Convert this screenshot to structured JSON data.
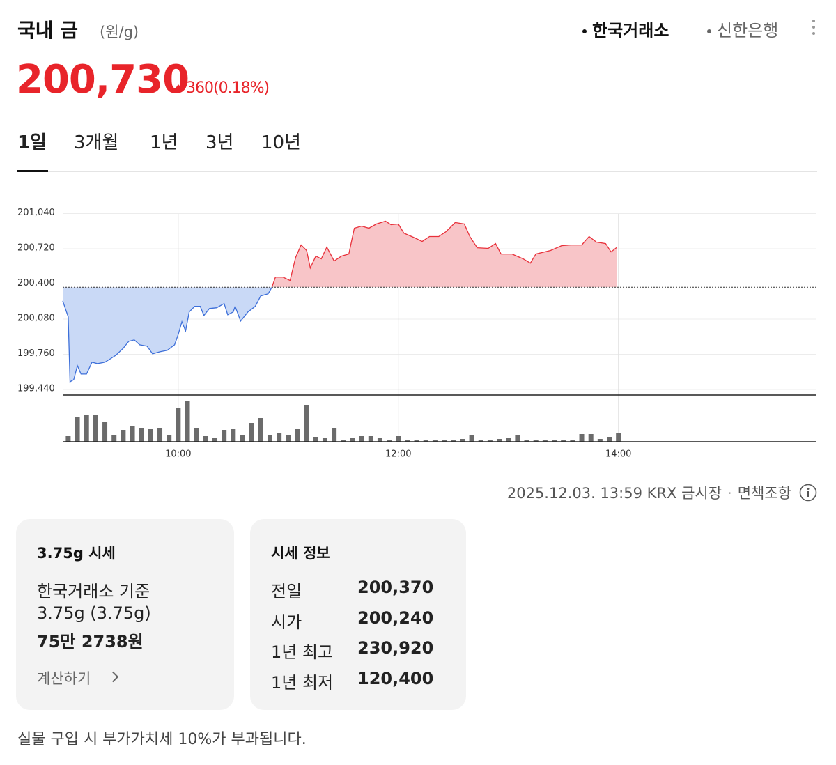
{
  "header": {
    "title": "국내 금",
    "unit": "(원/g)",
    "sources": [
      "한국거래소",
      "신한은행"
    ],
    "active_source": 0
  },
  "price": {
    "value": "200,730",
    "change": "360",
    "change_rate": "(0.18%)"
  },
  "tabs": {
    "items": [
      "1일",
      "3개월",
      "1년",
      "3년",
      "10년"
    ],
    "active": 0
  },
  "chart_data": {
    "type": "line",
    "x": [
      "08:57",
      "09:00",
      "09:01",
      "09:03",
      "09:05",
      "09:07",
      "09:10",
      "09:13",
      "09:16",
      "09:20",
      "09:23",
      "09:26",
      "09:30",
      "09:33",
      "09:36",
      "09:39",
      "09:43",
      "09:46",
      "09:50",
      "09:54",
      "09:58",
      "10:00",
      "10:02",
      "10:04",
      "10:06",
      "10:09",
      "10:12",
      "10:14",
      "10:17",
      "10:21",
      "10:25",
      "10:27",
      "10:30",
      "10:31",
      "10:34",
      "10:38",
      "10:42",
      "10:45",
      "10:49",
      "10:51",
      "10:53",
      "10:57",
      "11:01",
      "11:04",
      "11:07",
      "11:10",
      "11:12",
      "11:15",
      "11:18",
      "11:21",
      "11:25",
      "11:29",
      "11:33",
      "11:36",
      "11:40",
      "11:44",
      "11:48",
      "11:53",
      "11:56",
      "12:00",
      "12:03",
      "12:09",
      "12:13",
      "12:17",
      "12:22",
      "12:26",
      "12:31",
      "12:36",
      "12:39",
      "12:43",
      "12:49",
      "12:53",
      "12:56",
      "13:02",
      "13:08",
      "13:12",
      "13:15",
      "13:23",
      "13:29",
      "13:34",
      "13:40",
      "13:44",
      "13:48",
      "13:53",
      "13:56",
      "13:59"
    ],
    "series": [
      {
        "values": [
          200246,
          200100,
          199510,
          199529,
          199656,
          199580,
          199580,
          199688,
          199675,
          199688,
          199719,
          199751,
          199815,
          199878,
          199891,
          199846,
          199834,
          199764,
          199783,
          199796,
          199846,
          199942,
          200056,
          199973,
          200145,
          200196,
          200196,
          200113,
          200176,
          200183,
          200221,
          200119,
          200145,
          200196,
          200062,
          200145,
          200196,
          200291,
          200310,
          200367,
          200462,
          200462,
          200431,
          200640,
          200754,
          200704,
          200545,
          200653,
          200628,
          200735,
          200608,
          200653,
          200672,
          200907,
          200926,
          200907,
          200945,
          200970,
          200939,
          200945,
          200862,
          200818,
          200786,
          200831,
          200831,
          200875,
          200958,
          200945,
          200831,
          200729,
          200723,
          200767,
          200672,
          200672,
          200628,
          200589,
          200672,
          200704,
          200748,
          200754,
          200754,
          200831,
          200780,
          200767,
          200691,
          200730
        ],
        "color": "#3d6fd9",
        "up_color": "#e8303a",
        "fill": "#c9d9f6",
        "up_fill": "#f8c5c8"
      }
    ],
    "baseline": 200370,
    "xlim": [
      "08:57",
      "15:48"
    ],
    "xticks": [
      "10:00",
      "12:00",
      "14:00"
    ],
    "ylim": [
      199440,
      201100
    ],
    "yticks": [
      {
        "value": 199440,
        "label": "199,440"
      },
      {
        "value": 199760,
        "label": "199,760"
      },
      {
        "value": 200080,
        "label": "200,080"
      },
      {
        "value": 200400,
        "label": "200,400"
      },
      {
        "value": 200720,
        "label": "200,720"
      },
      {
        "value": 201040,
        "label": "201,040"
      }
    ],
    "grid": true,
    "volume": {
      "x": [
        "09:00",
        "09:05",
        "09:10",
        "09:15",
        "09:20",
        "09:25",
        "09:30",
        "09:35",
        "09:40",
        "09:45",
        "09:50",
        "09:55",
        "10:00",
        "10:05",
        "10:10",
        "10:15",
        "10:20",
        "10:25",
        "10:30",
        "10:35",
        "10:40",
        "10:45",
        "10:50",
        "10:55",
        "11:00",
        "11:05",
        "11:10",
        "11:15",
        "11:20",
        "11:25",
        "11:30",
        "11:35",
        "11:40",
        "11:45",
        "11:50",
        "11:55",
        "12:00",
        "12:05",
        "12:10",
        "12:15",
        "12:20",
        "12:25",
        "12:30",
        "12:35",
        "12:40",
        "12:45",
        "12:50",
        "12:55",
        "13:00",
        "13:05",
        "13:10",
        "13:15",
        "13:20",
        "13:25",
        "13:30",
        "13:35",
        "13:40",
        "13:45",
        "13:50",
        "13:55",
        "14:00"
      ],
      "values": [
        8,
        36,
        38,
        38,
        28,
        10,
        17,
        22,
        20,
        18,
        20,
        10,
        48,
        58,
        20,
        8,
        5,
        17,
        18,
        10,
        27,
        34,
        10,
        12,
        10,
        18,
        52,
        7,
        5,
        20,
        3,
        6,
        8,
        8,
        5,
        2,
        8,
        3,
        3,
        2,
        2,
        3,
        3,
        4,
        10,
        3,
        3,
        4,
        5,
        9,
        3,
        3,
        3,
        3,
        2,
        2,
        11,
        11,
        4,
        7,
        12
      ],
      "ylim": [
        0,
        60
      ],
      "color": "#6b6b6b"
    }
  },
  "footer": {
    "timestamp": "2025.12.03. 13:59 KRX 금시장",
    "disclaimer": "면책조항"
  },
  "cards": {
    "weight": {
      "title": "3.75g 시세",
      "basis": "한국거래소 기준",
      "amount": "3.75g (3.75g)",
      "price": "75만 2738원",
      "action": "계산하기"
    },
    "info": {
      "title": "시세 정보",
      "rows": [
        {
          "label": "전일",
          "value": "200,370"
        },
        {
          "label": "시가",
          "value": "200,240"
        },
        {
          "label": "1년 최고",
          "value": "230,920"
        },
        {
          "label": "1년 최저",
          "value": "120,400"
        }
      ]
    }
  },
  "note": "실물 구입 시 부가가치세 10%가 부과됩니다."
}
